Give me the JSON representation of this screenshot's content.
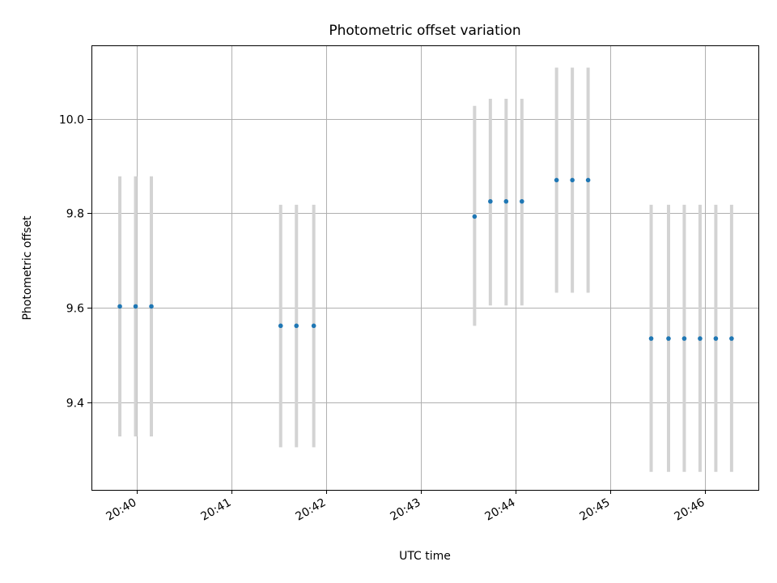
{
  "chart_data": {
    "type": "scatter",
    "title": "Photometric offset variation",
    "xlabel": "UTC time",
    "ylabel": "Photometric offset",
    "x_axis": {
      "kind": "time",
      "range": [
        "20:39:31",
        "20:46:34"
      ],
      "ticks": [
        "20:40",
        "20:41",
        "20:42",
        "20:43",
        "20:44",
        "20:45",
        "20:46"
      ]
    },
    "y_axis": {
      "range": [
        9.215,
        10.155
      ],
      "ticks": [
        "9.4",
        "9.6",
        "9.8",
        "10.0"
      ]
    },
    "grid": true,
    "colors": {
      "marker": "#1f77b4",
      "errorbar": "#d3d3d3"
    },
    "points": [
      {
        "x": "20:39:49",
        "y": 9.603,
        "lower": 9.328,
        "upper": 9.878
      },
      {
        "x": "20:39:59",
        "y": 9.603,
        "lower": 9.328,
        "upper": 9.878
      },
      {
        "x": "20:40:09",
        "y": 9.603,
        "lower": 9.328,
        "upper": 9.878
      },
      {
        "x": "20:41:31",
        "y": 9.562,
        "lower": 9.305,
        "upper": 9.818
      },
      {
        "x": "20:41:41",
        "y": 9.562,
        "lower": 9.305,
        "upper": 9.818
      },
      {
        "x": "20:41:52",
        "y": 9.562,
        "lower": 9.305,
        "upper": 9.818
      },
      {
        "x": "20:43:34",
        "y": 9.793,
        "lower": 9.562,
        "upper": 10.027
      },
      {
        "x": "20:43:44",
        "y": 9.825,
        "lower": 9.605,
        "upper": 10.042
      },
      {
        "x": "20:43:54",
        "y": 9.825,
        "lower": 9.605,
        "upper": 10.042
      },
      {
        "x": "20:44:04",
        "y": 9.825,
        "lower": 9.605,
        "upper": 10.042
      },
      {
        "x": "20:44:26",
        "y": 9.87,
        "lower": 9.632,
        "upper": 10.108
      },
      {
        "x": "20:44:36",
        "y": 9.87,
        "lower": 9.632,
        "upper": 10.108
      },
      {
        "x": "20:44:46",
        "y": 9.87,
        "lower": 9.632,
        "upper": 10.108
      },
      {
        "x": "20:45:26",
        "y": 9.535,
        "lower": 9.253,
        "upper": 9.818
      },
      {
        "x": "20:45:37",
        "y": 9.535,
        "lower": 9.253,
        "upper": 9.818
      },
      {
        "x": "20:45:47",
        "y": 9.535,
        "lower": 9.253,
        "upper": 9.818
      },
      {
        "x": "20:45:57",
        "y": 9.535,
        "lower": 9.253,
        "upper": 9.818
      },
      {
        "x": "20:46:07",
        "y": 9.535,
        "lower": 9.253,
        "upper": 9.818
      },
      {
        "x": "20:46:17",
        "y": 9.535,
        "lower": 9.253,
        "upper": 9.818
      }
    ]
  }
}
